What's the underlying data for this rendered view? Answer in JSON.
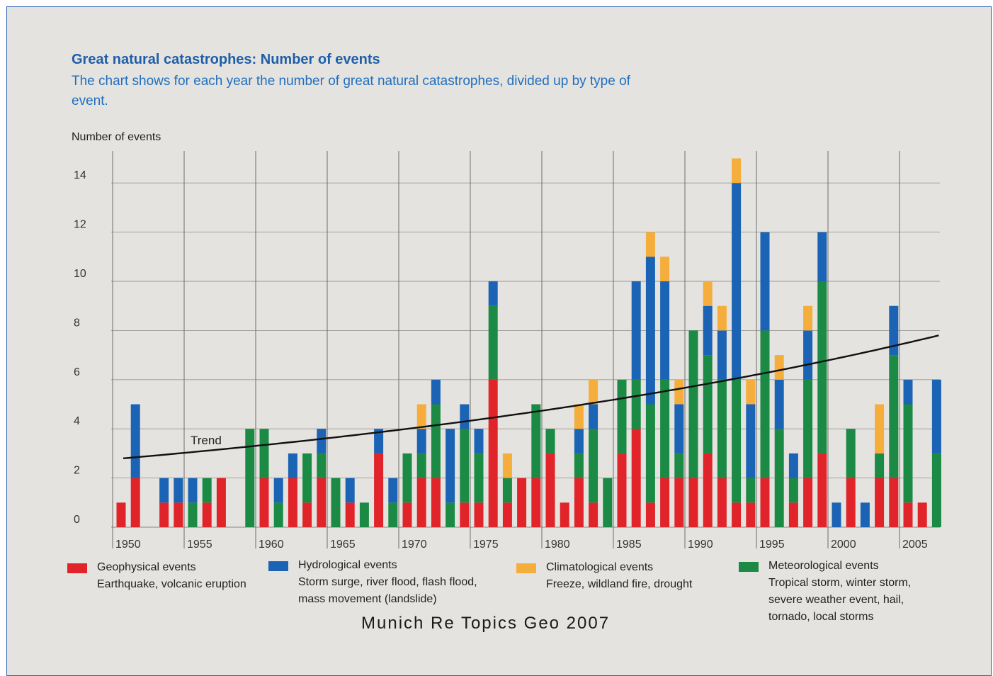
{
  "header": {
    "title": "Great natural catastrophes: Number of events",
    "subtitle": "The chart shows for each year the number of great natural catastrophes, divided up by type of event."
  },
  "source": "Munich Re Topics Geo 2007",
  "legend": [
    {
      "key": "geophysical",
      "title": "Geophysical events",
      "desc": "Earthquake, volcanic eruption"
    },
    {
      "key": "hydrological",
      "title": "Hydrological events",
      "desc": "Storm surge, river flood, flash flood,\nmass movement (landslide)"
    },
    {
      "key": "climatological",
      "title": "Climatological events",
      "desc": "Freeze, wildland fire, drought"
    },
    {
      "key": "meteorological",
      "title": "Meteorological events",
      "desc": "Tropical storm, winter storm,\nsevere weather event, hail,\ntornado, local storms"
    }
  ],
  "colors": {
    "geophysical": "#e0242a",
    "meteorological": "#1a8a45",
    "hydrological": "#1b63b4",
    "climatological": "#f5ad3b",
    "background": "#e5e3df",
    "accent": "#1f5ea8"
  },
  "chart_data": {
    "type": "bar",
    "stacked": true,
    "title": "Great natural catastrophes: Number of events",
    "ylabel": "Number of events",
    "xlabel": "",
    "ylim": [
      0,
      15
    ],
    "yticks": [
      0,
      2,
      4,
      6,
      8,
      10,
      12,
      14
    ],
    "xticks": [
      "1950",
      "1955",
      "1960",
      "1965",
      "1970",
      "1975",
      "1980",
      "1985",
      "1990",
      "1995",
      "2000",
      "2005"
    ],
    "grid": true,
    "stack_order": [
      "geophysical",
      "meteorological",
      "hydrological",
      "climatological"
    ],
    "categories": [
      "1950",
      "1951",
      "1952",
      "1953",
      "1954",
      "1955",
      "1956",
      "1957",
      "1958",
      "1959",
      "1960",
      "1961",
      "1962",
      "1963",
      "1964",
      "1965",
      "1966",
      "1967",
      "1968",
      "1969",
      "1970",
      "1971",
      "1972",
      "1973",
      "1974",
      "1975",
      "1976",
      "1977",
      "1978",
      "1979",
      "1980",
      "1981",
      "1982",
      "1983",
      "1984",
      "1985",
      "1986",
      "1987",
      "1988",
      "1989",
      "1990",
      "1991",
      "1992",
      "1993",
      "1994",
      "1995",
      "1996",
      "1997",
      "1998",
      "1999",
      "2000",
      "2001",
      "2002",
      "2003",
      "2004",
      "2005",
      "2006",
      "2007"
    ],
    "series": [
      {
        "name": "Geophysical events",
        "key": "geophysical",
        "values": [
          1,
          2,
          0,
          1,
          1,
          0,
          1,
          2,
          0,
          0,
          2,
          0,
          2,
          1,
          2,
          0,
          1,
          0,
          3,
          0,
          1,
          2,
          2,
          0,
          1,
          1,
          6,
          1,
          2,
          2,
          3,
          1,
          2,
          1,
          0,
          3,
          4,
          1,
          2,
          2,
          2,
          3,
          2,
          1,
          1,
          2,
          0,
          1,
          2,
          3,
          0,
          2,
          0,
          2,
          2,
          1,
          1,
          0
        ]
      },
      {
        "name": "Meteorological events",
        "key": "meteorological",
        "values": [
          0,
          0,
          0,
          0,
          0,
          1,
          1,
          0,
          0,
          4,
          2,
          1,
          0,
          2,
          1,
          2,
          0,
          1,
          0,
          1,
          2,
          1,
          3,
          1,
          3,
          2,
          3,
          1,
          0,
          3,
          1,
          0,
          1,
          3,
          2,
          3,
          2,
          4,
          4,
          1,
          6,
          4,
          4,
          5,
          1,
          6,
          4,
          1,
          4,
          7,
          0,
          2,
          0,
          1,
          5,
          4,
          0,
          3
        ]
      },
      {
        "name": "Hydrological events",
        "key": "hydrological",
        "values": [
          0,
          3,
          0,
          1,
          1,
          1,
          0,
          0,
          0,
          0,
          0,
          1,
          1,
          0,
          1,
          0,
          1,
          0,
          1,
          1,
          0,
          1,
          1,
          3,
          1,
          1,
          1,
          0,
          0,
          0,
          0,
          0,
          1,
          1,
          0,
          0,
          4,
          6,
          4,
          2,
          0,
          2,
          2,
          8,
          3,
          4,
          2,
          1,
          2,
          2,
          1,
          0,
          1,
          0,
          2,
          1,
          0,
          3
        ]
      },
      {
        "name": "Climatological events",
        "key": "climatological",
        "values": [
          0,
          0,
          0,
          0,
          0,
          0,
          0,
          0,
          0,
          0,
          0,
          0,
          0,
          0,
          0,
          0,
          0,
          0,
          0,
          0,
          0,
          1,
          0,
          0,
          0,
          0,
          0,
          1,
          0,
          0,
          0,
          0,
          1,
          1,
          0,
          0,
          0,
          1,
          1,
          1,
          0,
          1,
          1,
          1,
          1,
          0,
          1,
          0,
          1,
          0,
          0,
          0,
          0,
          2,
          0,
          0,
          0,
          0
        ]
      }
    ],
    "annotations": [
      "Trend"
    ],
    "trend": {
      "label": "Trend",
      "x": [
        "1950",
        "2007"
      ],
      "y": [
        2.8,
        7.8
      ],
      "shape": "exponential"
    }
  }
}
